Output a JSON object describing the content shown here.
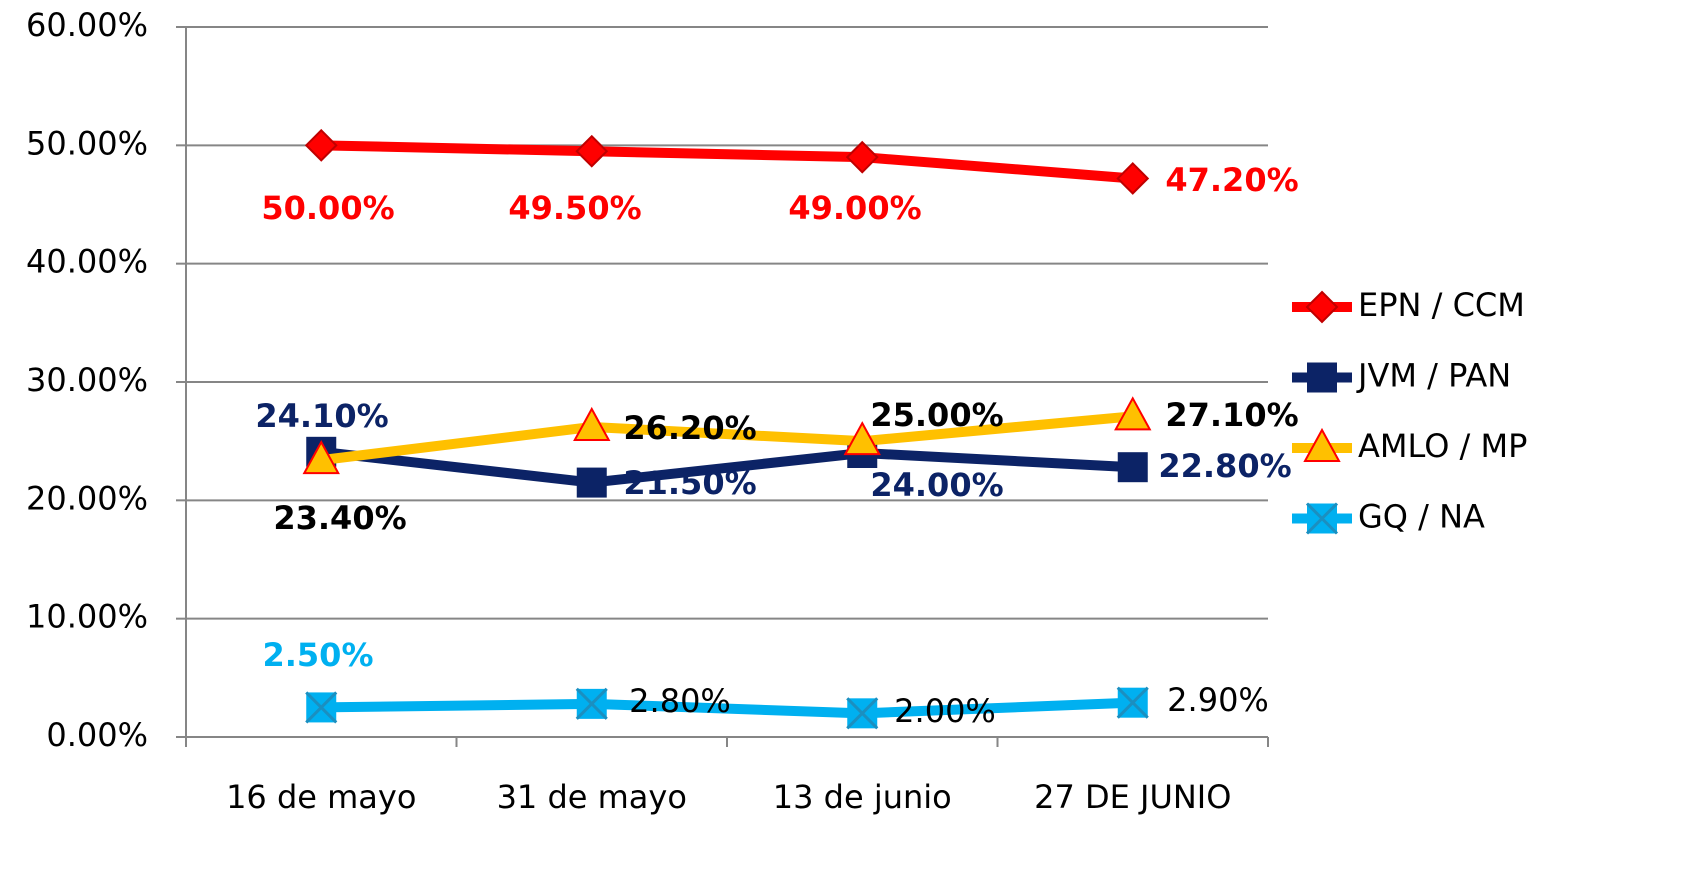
{
  "chart_data": {
    "type": "line",
    "categories": [
      "16 de mayo",
      "31 de mayo",
      "13 de junio",
      "27 DE JUNIO"
    ],
    "series": [
      {
        "name": "EPN / CCM",
        "color": "#ff0000",
        "values": [
          50,
          49.5,
          49,
          47.2
        ],
        "value_labels": [
          "50.00%",
          "49.50%",
          "49.00%",
          "47.20%"
        ]
      },
      {
        "name": "JVM / PAN",
        "color": "#0c2366",
        "values": [
          24.1,
          21.5,
          24,
          22.8
        ],
        "value_labels": [
          "24.10%",
          "21.50%",
          "24.00%",
          "22.80%"
        ]
      },
      {
        "name": "AMLO / MP",
        "color": "#ffc000",
        "values": [
          23.4,
          26.2,
          25,
          27.1
        ],
        "value_labels": [
          "23.40%",
          "26.20%",
          "25.00%",
          "27.10%"
        ]
      },
      {
        "name": "GQ / NA",
        "color": "#00b0f0",
        "values": [
          2.5,
          2.8,
          2,
          2.9
        ],
        "value_labels": [
          "2.50%",
          "2.80%",
          "2.00%",
          "2.90%"
        ]
      }
    ],
    "ylim": [
      0,
      60
    ],
    "yticks": [
      {
        "value": 0,
        "label": "0.00%"
      },
      {
        "value": 10,
        "label": "10.00%"
      },
      {
        "value": 20,
        "label": "20.00%"
      },
      {
        "value": 30,
        "label": "30.00%"
      },
      {
        "value": 40,
        "label": "40.00%"
      },
      {
        "value": 50,
        "label": "50.00%"
      },
      {
        "value": 60,
        "label": "60.00%"
      }
    ],
    "grid": true,
    "legend": "right"
  }
}
